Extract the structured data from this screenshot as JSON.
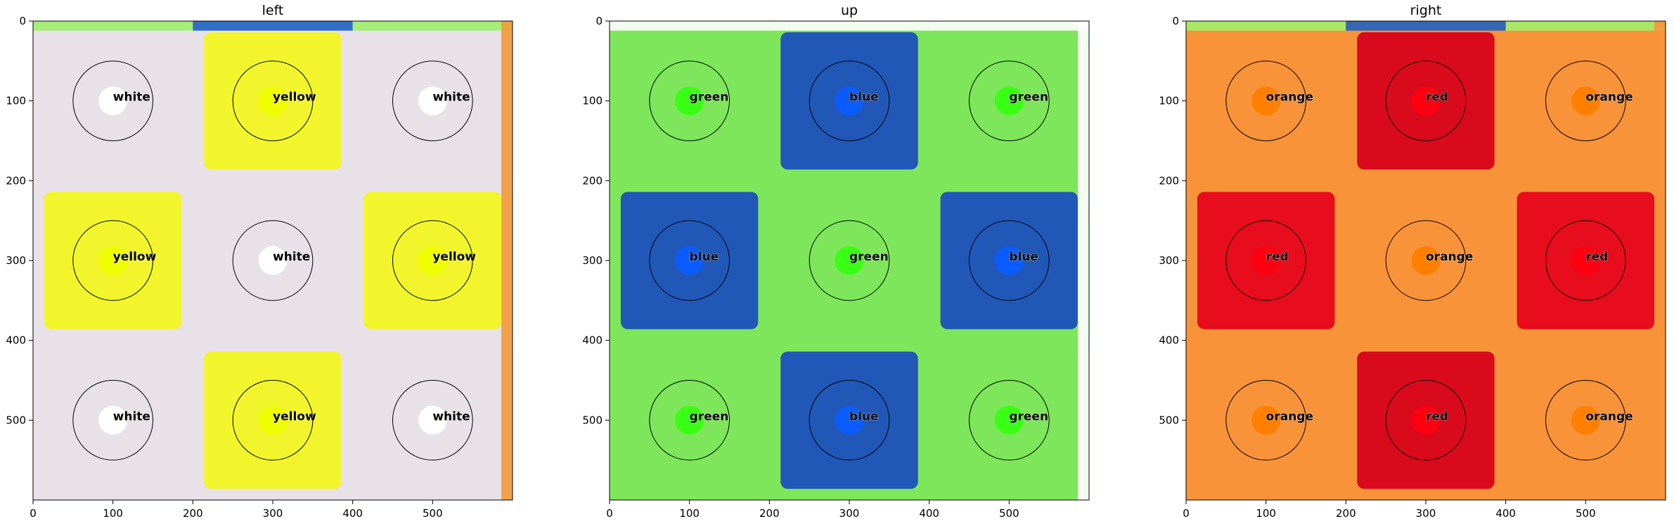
{
  "panels": [
    {
      "title": "left",
      "background": "#e8e1e8",
      "edge_top_colors": [
        "#9ff06a",
        "#1f63c0",
        "#9ff06a"
      ],
      "edge_right_color": "#f39a3a",
      "stickers": [
        [
          "#e8e1e8",
          "#f2f52b",
          "#e8e1e8"
        ],
        [
          "#f2f52b",
          "#e8e1e8",
          "#f2f52b"
        ],
        [
          "#e8e1e8",
          "#f2f52b",
          "#e8e1e8"
        ]
      ],
      "dots": [
        [
          "#ffffff",
          "#f0ff00",
          "#ffffff"
        ],
        [
          "#f0ff00",
          "#ffffff",
          "#f0ff00"
        ],
        [
          "#ffffff",
          "#f0ff00",
          "#ffffff"
        ]
      ],
      "labels": [
        [
          "white",
          "yellow",
          "white"
        ],
        [
          "yellow",
          "white",
          "yellow"
        ],
        [
          "white",
          "yellow",
          "white"
        ]
      ]
    },
    {
      "title": "up",
      "background": "#7de65a",
      "edge_top_colors": [
        "#ffffff",
        "#ffffff",
        "#ffffff"
      ],
      "edge_right_color": "#ffffff",
      "stickers": [
        [
          "#7de65a",
          "#2158b8",
          "#7de65a"
        ],
        [
          "#2158b8",
          "#7de65a",
          "#2158b8"
        ],
        [
          "#7de65a",
          "#2158b8",
          "#7de65a"
        ]
      ],
      "dots": [
        [
          "#39ff14",
          "#0a5cff",
          "#39ff14"
        ],
        [
          "#0a5cff",
          "#39ff14",
          "#0a5cff"
        ],
        [
          "#39ff14",
          "#0a5cff",
          "#39ff14"
        ]
      ],
      "labels": [
        [
          "green",
          "blue",
          "green"
        ],
        [
          "blue",
          "green",
          "blue"
        ],
        [
          "green",
          "blue",
          "green"
        ]
      ]
    },
    {
      "title": "right",
      "background": "#f8933a",
      "edge_top_colors": [
        "#9ff06a",
        "#1f63c0",
        "#9ff06a"
      ],
      "edge_right_color": "#f8933a",
      "stickers": [
        [
          "#f8933a",
          "#d90a1c",
          "#f8933a"
        ],
        [
          "#e70d1c",
          "#f8933a",
          "#e70d1c"
        ],
        [
          "#f8933a",
          "#d90a1c",
          "#f8933a"
        ]
      ],
      "dots": [
        [
          "#ff7f00",
          "#ff0010",
          "#ff7f00"
        ],
        [
          "#ff0010",
          "#ff7f00",
          "#ff0010"
        ],
        [
          "#ff7f00",
          "#ff0010",
          "#ff7f00"
        ]
      ],
      "labels": [
        [
          "orange",
          "red",
          "orange"
        ],
        [
          "red",
          "orange",
          "red"
        ],
        [
          "orange",
          "red",
          "orange"
        ]
      ]
    }
  ],
  "axis": {
    "x_ticks": [
      "0",
      "100",
      "200",
      "300",
      "400",
      "500"
    ],
    "y_ticks": [
      "0",
      "100",
      "200",
      "300",
      "400",
      "500"
    ],
    "tick_values": [
      0,
      100,
      200,
      300,
      400,
      500
    ],
    "range": [
      0,
      600
    ]
  }
}
